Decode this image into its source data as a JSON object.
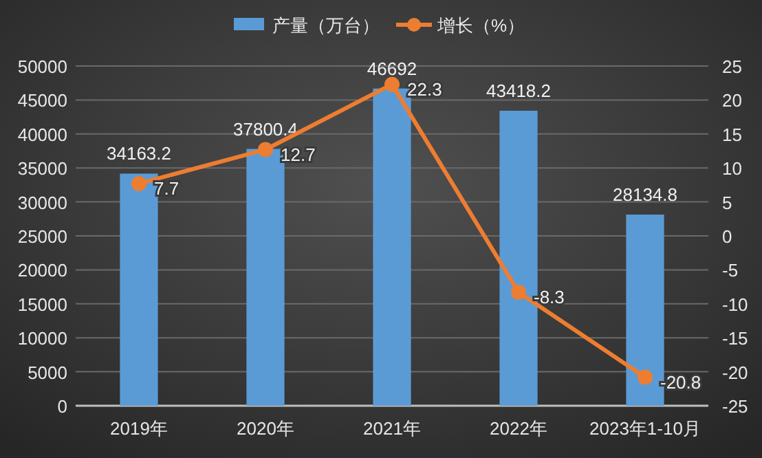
{
  "chart_data": {
    "type": "bar",
    "categories": [
      "2019年",
      "2020年",
      "2021年",
      "2022年",
      "2023年1-10月"
    ],
    "series": [
      {
        "name": "产量（万台）",
        "color": "#5b9bd5",
        "values": [
          34163.2,
          37800.4,
          46692,
          43418.2,
          28134.8
        ]
      },
      {
        "name": "增长（%）",
        "type": "line",
        "axis": "y2",
        "color": "#ed7d31",
        "values": [
          7.7,
          12.7,
          22.3,
          -8.3,
          -20.8
        ]
      }
    ],
    "ylim": [
      0,
      50000
    ],
    "yticks": [
      0,
      5000,
      10000,
      15000,
      20000,
      25000,
      30000,
      35000,
      40000,
      45000,
      50000
    ],
    "y2lim": [
      -25,
      25
    ],
    "y2ticks": [
      -25,
      -20,
      -15,
      -10,
      -5,
      0,
      5,
      10,
      15,
      20,
      25
    ],
    "grid": "y",
    "legend": "top",
    "marker": "circle",
    "data_labels": true
  }
}
